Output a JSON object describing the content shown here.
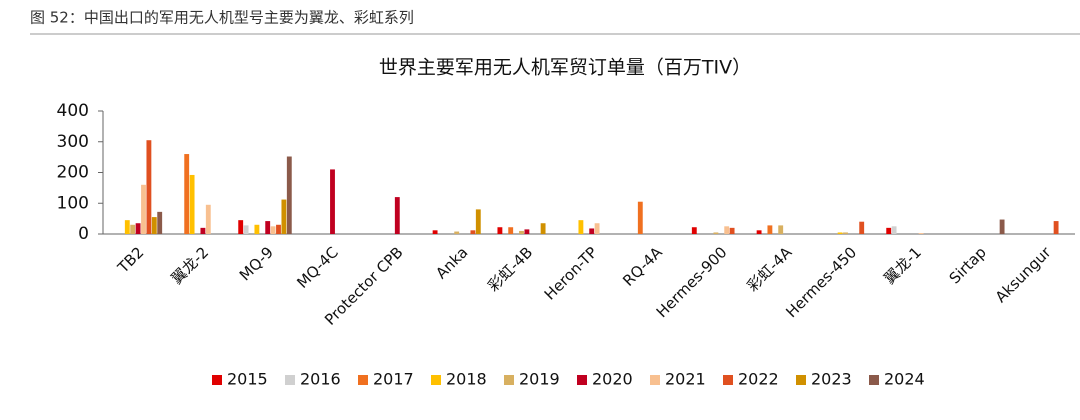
{
  "caption": "图 52：中国出口的军用无人机型号主要为翼龙、彩虹系列",
  "chart_data": {
    "type": "bar",
    "title": "世界主要军用无人机军贸订单量（百万TIV）",
    "categories": [
      "TB2",
      "翼龙-2",
      "MQ-9",
      "MQ-4C",
      "Protector CPB",
      "Anka",
      "彩虹-4B",
      "Heron-TP",
      "RQ-4A",
      "Hermes-900",
      "彩虹-4A",
      "Hermes-450",
      "翼龙-1",
      "Sirtap",
      "Aksungur"
    ],
    "ylim": [
      0,
      400
    ],
    "yticks": [
      0,
      100,
      200,
      300,
      400
    ],
    "grid": false,
    "legend": "bottom",
    "series": [
      {
        "name": "2015",
        "color": "#e00000",
        "values": [
          0,
          0,
          45,
          0,
          0,
          12,
          22,
          0,
          0,
          22,
          12,
          0,
          20,
          0,
          0
        ]
      },
      {
        "name": "2016",
        "color": "#d0d0d0",
        "values": [
          0,
          0,
          28,
          0,
          0,
          0,
          0,
          0,
          0,
          0,
          0,
          0,
          25,
          0,
          0
        ]
      },
      {
        "name": "2017",
        "color": "#f07020",
        "values": [
          0,
          260,
          0,
          0,
          0,
          0,
          22,
          0,
          105,
          0,
          28,
          0,
          0,
          0,
          0
        ]
      },
      {
        "name": "2018",
        "color": "#ffc000",
        "values": [
          45,
          192,
          30,
          0,
          0,
          0,
          0,
          45,
          0,
          0,
          0,
          5,
          0,
          0,
          0
        ]
      },
      {
        "name": "2019",
        "color": "#d8b060",
        "values": [
          30,
          0,
          0,
          0,
          0,
          8,
          10,
          0,
          0,
          5,
          28,
          5,
          0,
          0,
          0
        ]
      },
      {
        "name": "2020",
        "color": "#c00020",
        "values": [
          35,
          20,
          42,
          210,
          120,
          0,
          15,
          18,
          0,
          0,
          0,
          0,
          0,
          0,
          0
        ]
      },
      {
        "name": "2021",
        "color": "#f8c090",
        "values": [
          160,
          95,
          25,
          0,
          0,
          0,
          0,
          35,
          0,
          25,
          0,
          0,
          3,
          0,
          0
        ]
      },
      {
        "name": "2022",
        "color": "#e05020",
        "values": [
          305,
          0,
          30,
          0,
          0,
          12,
          0,
          0,
          0,
          20,
          0,
          40,
          0,
          0,
          42
        ]
      },
      {
        "name": "2023",
        "color": "#d09000",
        "values": [
          55,
          0,
          112,
          0,
          0,
          80,
          35,
          0,
          0,
          0,
          0,
          0,
          0,
          0,
          0
        ]
      },
      {
        "name": "2024",
        "color": "#8b5a4a",
        "values": [
          72,
          0,
          252,
          0,
          0,
          0,
          0,
          0,
          0,
          0,
          0,
          0,
          0,
          47,
          0
        ]
      }
    ]
  }
}
